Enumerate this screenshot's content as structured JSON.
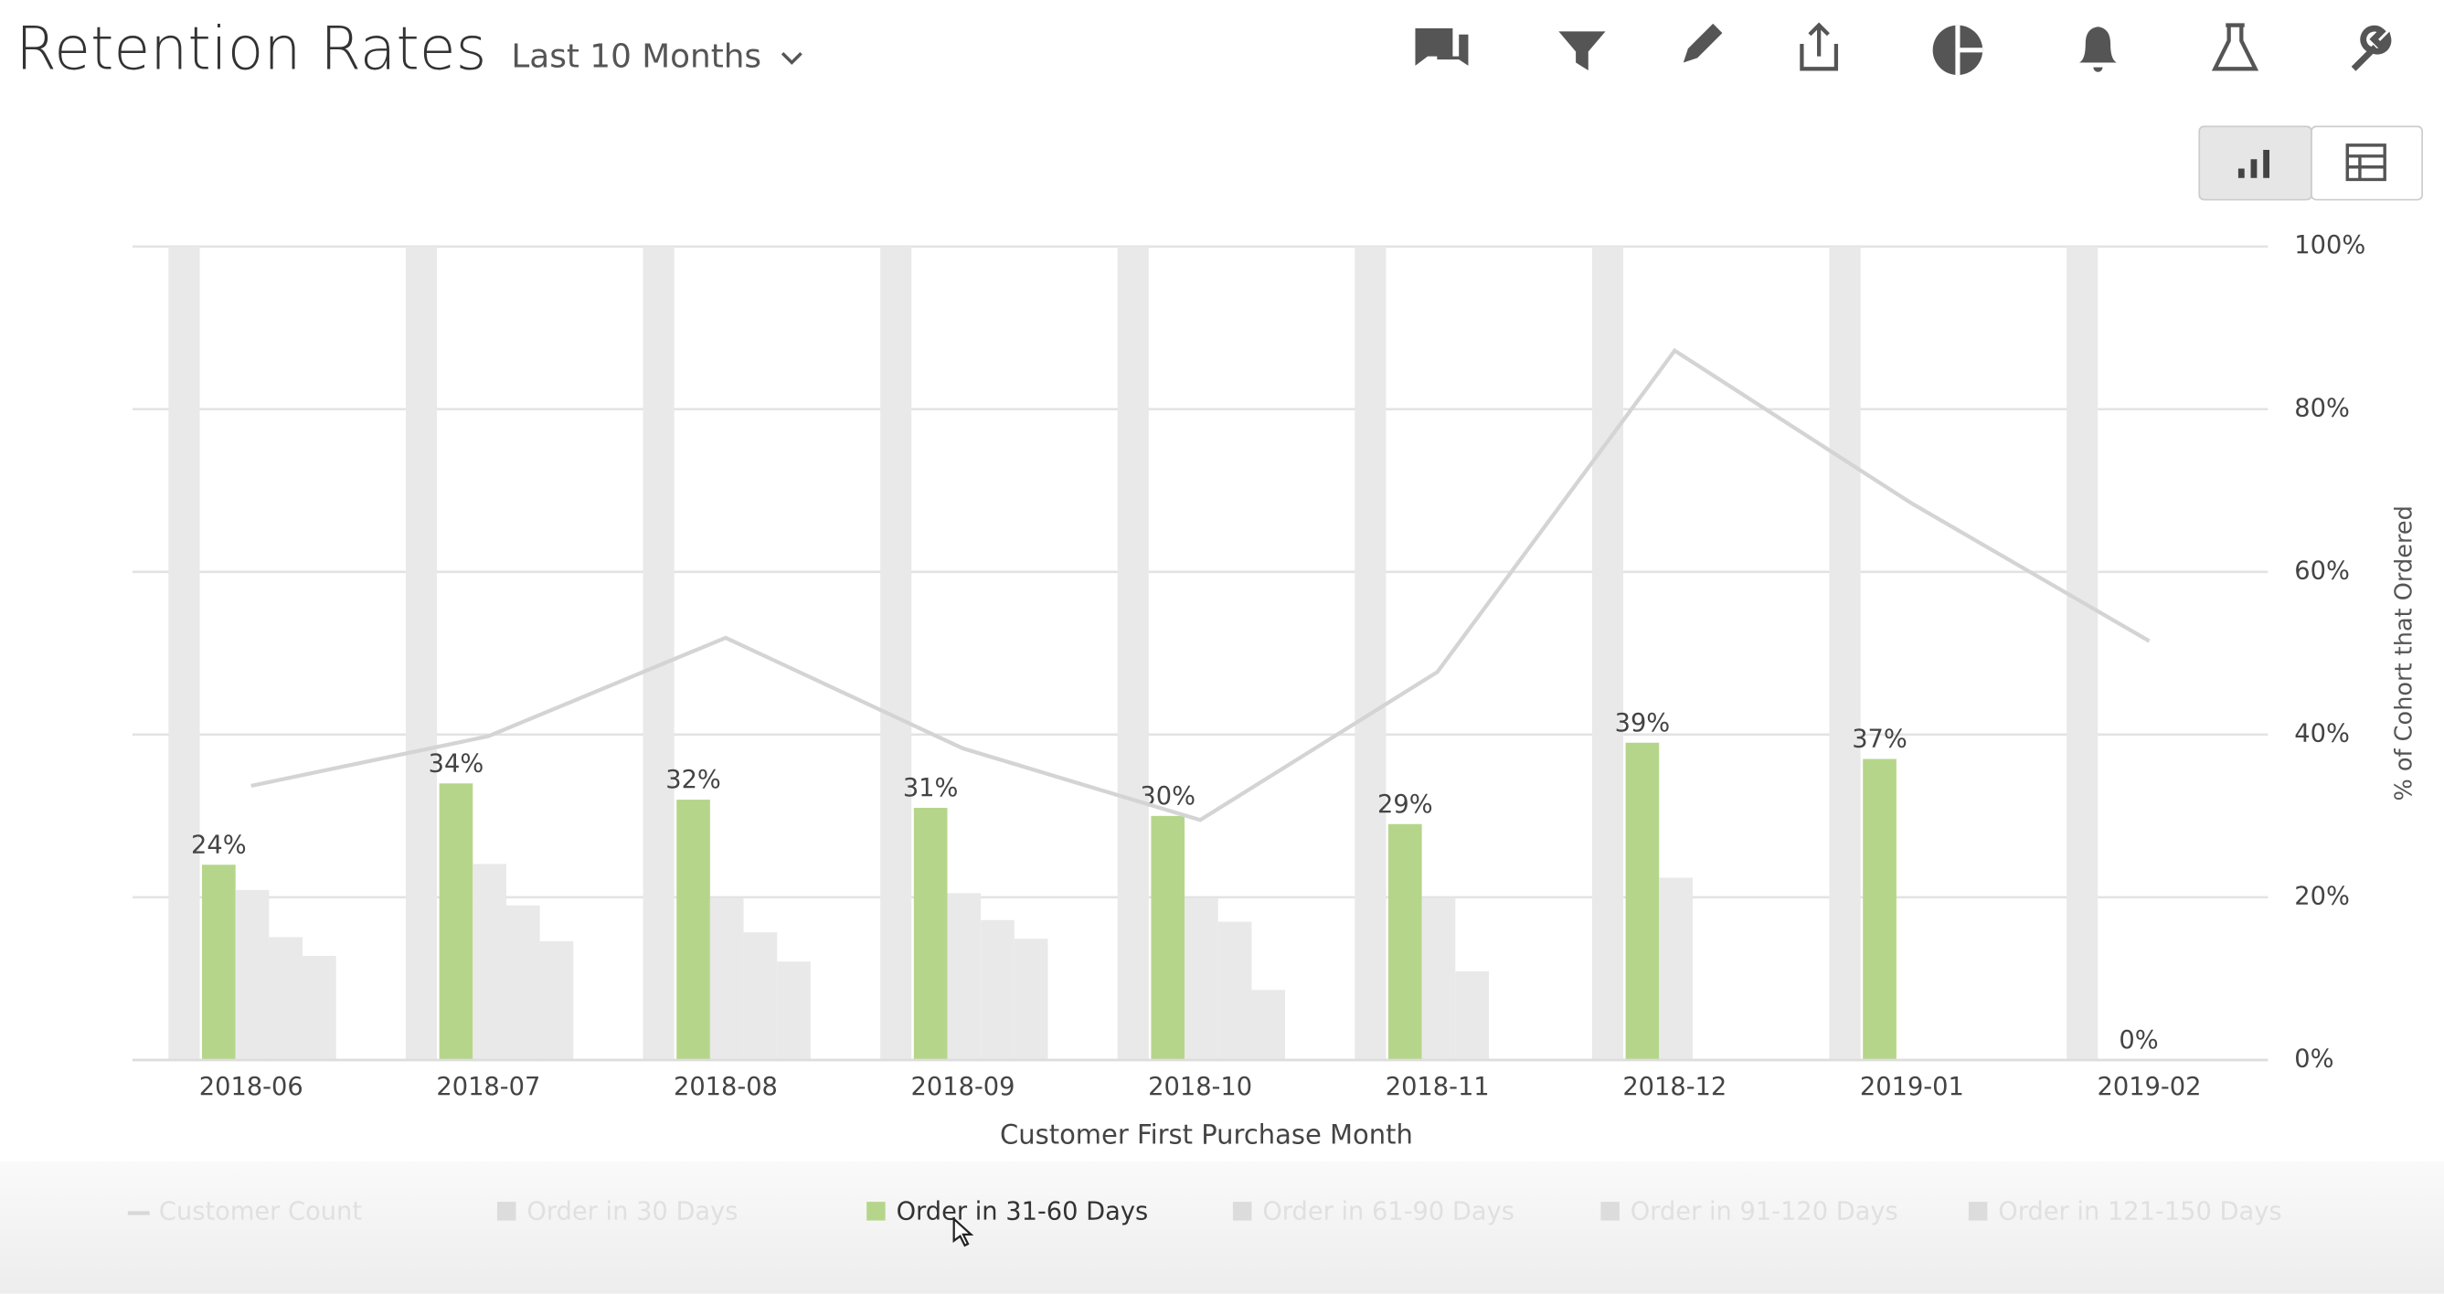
{
  "header": {
    "title": "Retention Rates",
    "date_range": "Last 10 Months"
  },
  "chart_data": {
    "type": "bar",
    "categories": [
      "2018-06",
      "2018-07",
      "2018-08",
      "2018-09",
      "2018-10",
      "2018-11",
      "2018-12",
      "2019-01",
      "2019-02"
    ],
    "x_label": "Customer First Purchase Month",
    "y_label": "% of Cohort that Ordered",
    "ylim": [
      0,
      100
    ],
    "yticks": [
      {
        "value": 0,
        "label": "0%"
      },
      {
        "value": 20,
        "label": "20%"
      },
      {
        "value": 40,
        "label": "40%"
      },
      {
        "value": 60,
        "label": "60%"
      },
      {
        "value": 80,
        "label": "80%"
      },
      {
        "value": 100,
        "label": "100%"
      }
    ],
    "grid": true,
    "series": [
      {
        "name": "Customer Count",
        "type": "line",
        "color": "#d4d4d4",
        "visible": false,
        "values": [
          33.7,
          39.8,
          51.9,
          38.3,
          29.5,
          47.7,
          87.2,
          68.4,
          51.5
        ]
      },
      {
        "name": "Order in 30 Days",
        "type": "bar",
        "color": "#e9e9e9",
        "visible": false,
        "values": [
          100,
          100,
          100,
          100,
          100,
          100,
          100,
          100,
          100
        ]
      },
      {
        "name": "Order in 31-60 Days",
        "type": "bar",
        "color": "#b5d68a",
        "visible": true,
        "values": [
          24,
          34,
          32,
          31,
          30,
          29,
          39,
          37,
          0
        ],
        "value_labels": [
          "24%",
          "34%",
          "32%",
          "31%",
          "30%",
          "29%",
          "39%",
          "37%",
          "0%"
        ]
      },
      {
        "name": "Order in 61-90 Days",
        "type": "bar",
        "color": "#e9e9e9",
        "visible": false,
        "values": [
          20.9,
          24.1,
          19.9,
          20.5,
          19.9,
          19.9,
          22.4,
          null,
          null
        ]
      },
      {
        "name": "Order in 91-120 Days",
        "type": "bar",
        "color": "#e9e9e9",
        "visible": false,
        "values": [
          15.1,
          19.0,
          15.7,
          17.2,
          17.0,
          10.9,
          null,
          null,
          null
        ]
      },
      {
        "name": "Order in 121-150 Days",
        "type": "bar",
        "color": "#e9e9e9",
        "visible": false,
        "values": [
          12.8,
          14.6,
          12.1,
          14.9,
          8.6,
          null,
          null,
          null,
          null
        ]
      }
    ]
  }
}
